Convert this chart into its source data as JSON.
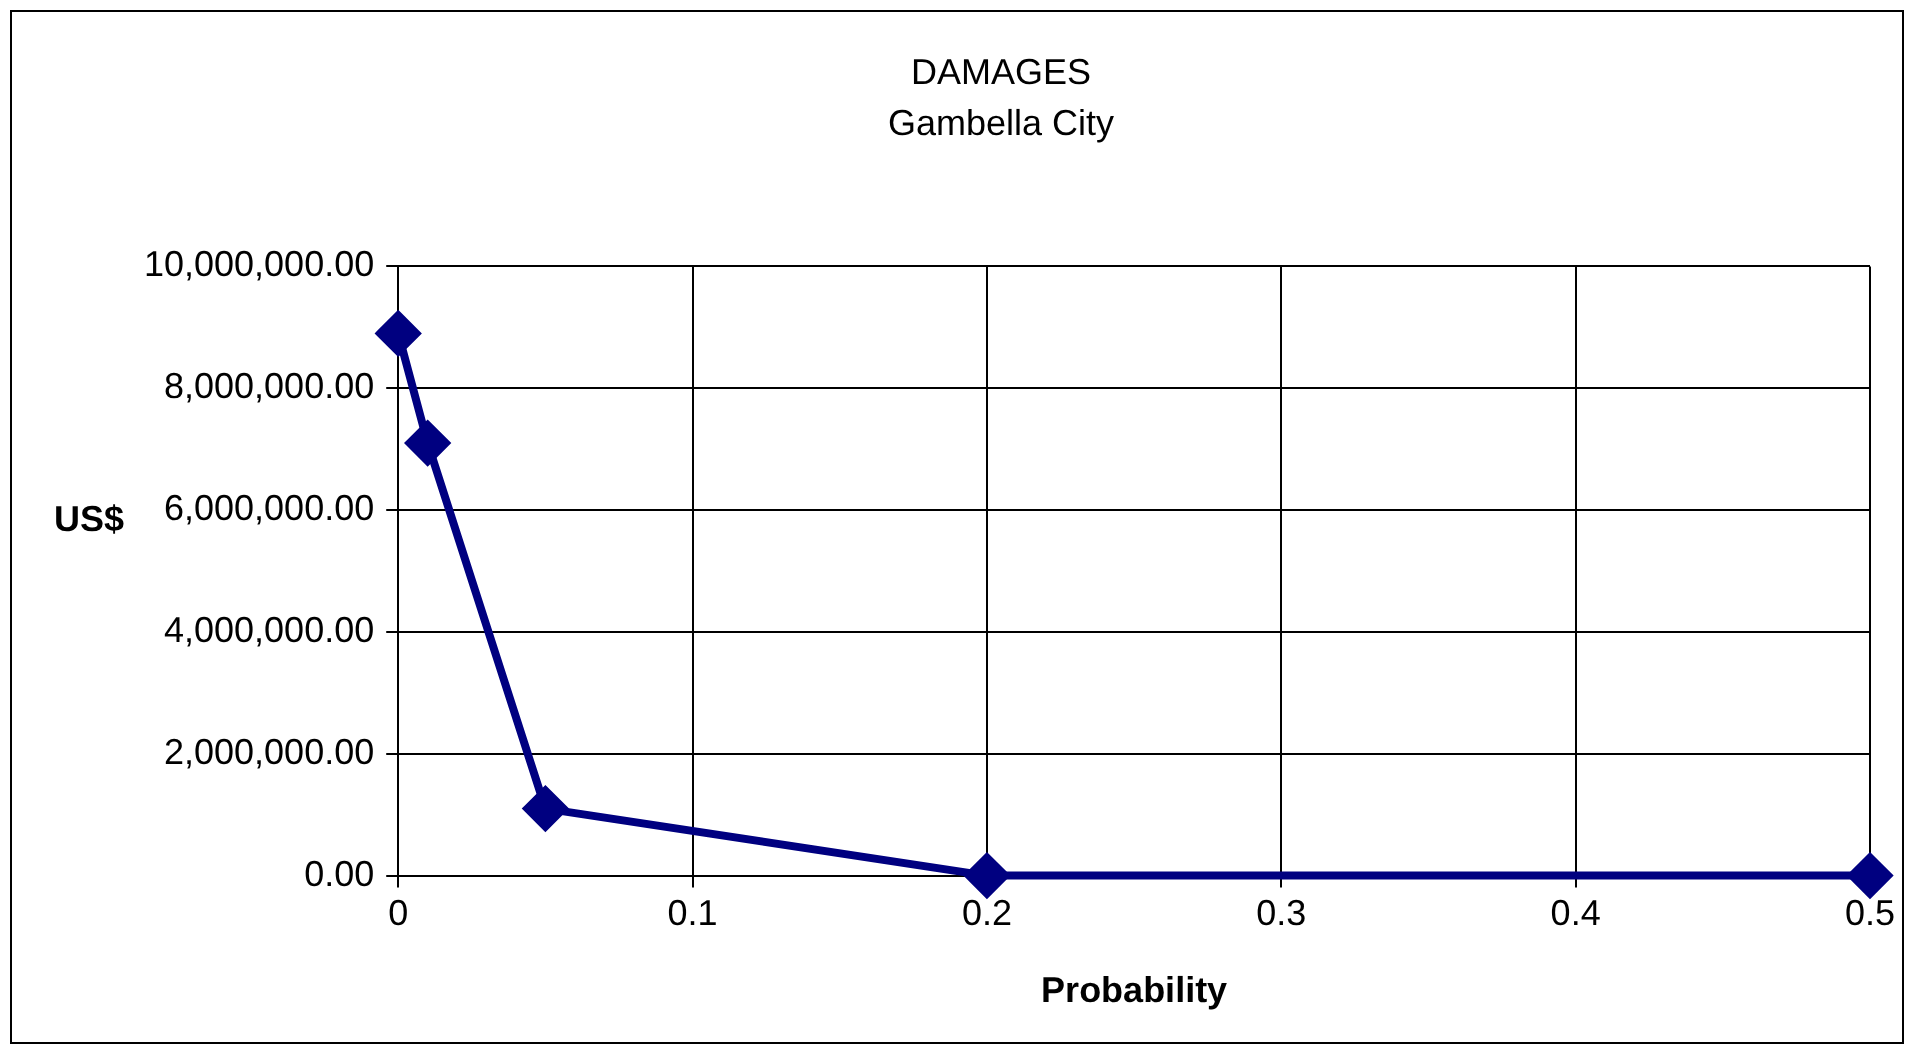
{
  "chart_data": {
    "type": "line",
    "title": "DAMAGES",
    "subtitle": "Gambella City",
    "xlabel": "Probability",
    "ylabel": "US$",
    "x": [
      0,
      0.01,
      0.05,
      0.2,
      0.5
    ],
    "series": [
      {
        "color": "#000080",
        "values": [
          8900000,
          7100000,
          1100000,
          0,
          0
        ]
      }
    ],
    "xlim": [
      0,
      0.5
    ],
    "xticks": [
      0,
      0.1,
      0.2,
      0.3,
      0.4,
      0.5
    ],
    "ylim": [
      0,
      10000000
    ],
    "yticks": [
      {
        "value": 0,
        "label": "0.00"
      },
      {
        "value": 2000000,
        "label": "2,000,000.00"
      },
      {
        "value": 4000000,
        "label": "4,000,000.00"
      },
      {
        "value": 6000000,
        "label": "6,000,000.00"
      },
      {
        "value": 8000000,
        "label": "8,000,000.00"
      },
      {
        "value": 10000000,
        "label": "10,000,000.00"
      }
    ],
    "grid": true,
    "legend": false,
    "marker": "diamond",
    "line_style": "solid"
  }
}
